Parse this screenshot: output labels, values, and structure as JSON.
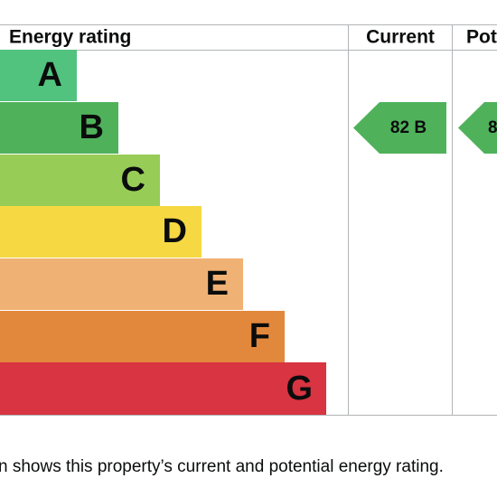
{
  "header": {
    "rating": "Energy rating",
    "current": "Current",
    "potential": "Pot"
  },
  "bands": [
    "A",
    "B",
    "C",
    "D",
    "E",
    "F",
    "G"
  ],
  "current": "82 B",
  "potential": "8",
  "caption": "n shows this property’s current and potential energy rating."
}
